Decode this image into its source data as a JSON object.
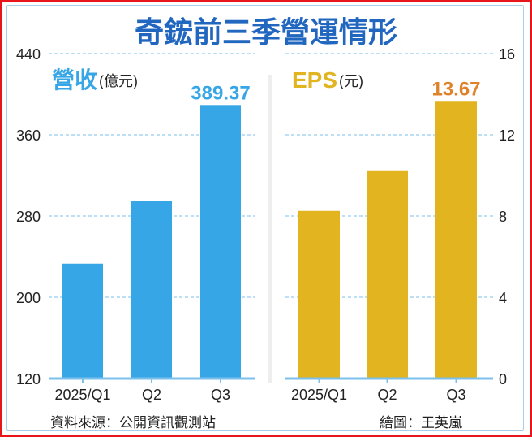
{
  "title": "奇鋐前三季營運情形",
  "source": "資料來源：公開資訊觀測站",
  "credit": "繪圖：王英嵐",
  "colors": {
    "revenue": "#37a6e6",
    "eps": "#e1b420",
    "title": "#2167bf",
    "eps_label": "#e0822a",
    "grid": "#7cc0ec"
  },
  "chart_data": [
    {
      "type": "bar",
      "title": "營收",
      "unit": "(億元)",
      "categories": [
        "2025/Q1",
        "Q2",
        "Q3"
      ],
      "values": [
        233,
        295,
        389.37
      ],
      "data_labels": [
        "",
        "",
        "389.37"
      ],
      "ylim": [
        120,
        440
      ],
      "yticks": [
        "440",
        "360",
        "280",
        "200",
        "120"
      ],
      "axis_side": "left",
      "grid": true
    },
    {
      "type": "bar",
      "title": "EPS",
      "unit": "(元)",
      "categories": [
        "2025/Q1",
        "Q2",
        "Q3"
      ],
      "values": [
        8.25,
        10.25,
        13.67
      ],
      "data_labels": [
        "",
        "",
        "13.67"
      ],
      "ylim": [
        0,
        16
      ],
      "yticks": [
        "16",
        "12",
        "8",
        "4",
        "0"
      ],
      "axis_side": "right",
      "grid": true
    }
  ]
}
